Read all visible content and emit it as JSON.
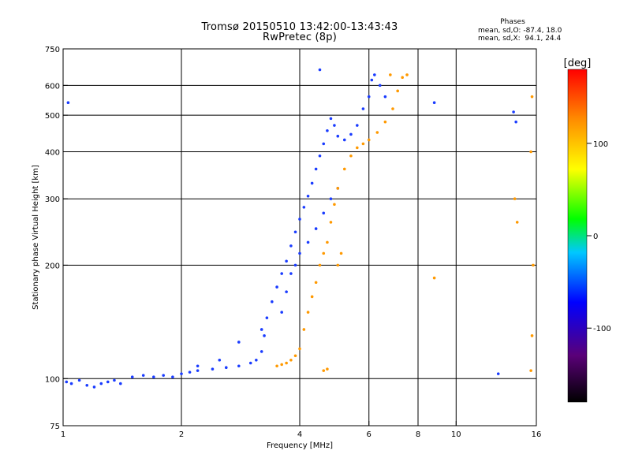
{
  "header": {
    "title_line1": "Tromsø 20150510 13:42:00-13:43:43",
    "title_line2": "RwPretec (8p)",
    "stats_heading": "Phases",
    "stats_o": "mean, sd,O: -87.4, 18.0",
    "stats_x": "mean, sd,X:  94.1, 24.4"
  },
  "colors": {
    "frame": "#000000",
    "grid": "#000000",
    "colorbar_stops": [
      "#000000",
      "#5a0078",
      "#0000ff",
      "#00c8ff",
      "#00ff00",
      "#ffff00",
      "#ff8c00",
      "#ff0000"
    ]
  },
  "chart_data": {
    "type": "scatter",
    "title": "Tromsø 20150510 13:42:00-13:43:43",
    "subtitle": "RwPretec (8p)",
    "xlabel": "Frequency [MHz]",
    "ylabel": "Stationary phase Virtual Height [km]",
    "x_scale": "log",
    "y_scale": "log",
    "xlim": [
      1,
      16
    ],
    "ylim": [
      75,
      750
    ],
    "x_ticks": [
      1,
      2,
      4,
      6,
      8,
      10,
      16
    ],
    "y_ticks": [
      75,
      100,
      200,
      300,
      400,
      500,
      600,
      750
    ],
    "x_gridlines": [
      2,
      4,
      6,
      8,
      10
    ],
    "y_gridlines": [
      100,
      200,
      300,
      400,
      500,
      600
    ],
    "grid": true,
    "colorbar": {
      "label": "[deg]",
      "range": [
        -180,
        180
      ],
      "ticks": [
        100,
        0,
        -100
      ],
      "placement": "right"
    },
    "series": [
      {
        "name": "O",
        "color": "#1a3cff",
        "points": [
          [
            1.02,
            98
          ],
          [
            1.05,
            97
          ],
          [
            1.1,
            99
          ],
          [
            1.15,
            96
          ],
          [
            1.2,
            95
          ],
          [
            1.25,
            97
          ],
          [
            1.3,
            98
          ],
          [
            1.35,
            99
          ],
          [
            1.4,
            97
          ],
          [
            1.5,
            101
          ],
          [
            1.6,
            102
          ],
          [
            1.7,
            101
          ],
          [
            1.8,
            102
          ],
          [
            1.9,
            101
          ],
          [
            2.0,
            103
          ],
          [
            2.1,
            104
          ],
          [
            2.2,
            105
          ],
          [
            2.4,
            106
          ],
          [
            2.6,
            107
          ],
          [
            2.8,
            108
          ],
          [
            3.0,
            110
          ],
          [
            3.1,
            112
          ],
          [
            3.2,
            118
          ],
          [
            3.25,
            130
          ],
          [
            3.3,
            145
          ],
          [
            3.4,
            160
          ],
          [
            3.5,
            175
          ],
          [
            3.6,
            190
          ],
          [
            3.7,
            205
          ],
          [
            3.8,
            225
          ],
          [
            3.9,
            245
          ],
          [
            4.0,
            265
          ],
          [
            4.1,
            285
          ],
          [
            4.2,
            305
          ],
          [
            4.3,
            330
          ],
          [
            4.4,
            360
          ],
          [
            4.5,
            390
          ],
          [
            4.6,
            420
          ],
          [
            4.7,
            455
          ],
          [
            4.8,
            490
          ],
          [
            4.9,
            470
          ],
          [
            5.0,
            440
          ],
          [
            5.2,
            430
          ],
          [
            5.4,
            445
          ],
          [
            5.6,
            470
          ],
          [
            5.8,
            520
          ],
          [
            6.0,
            560
          ],
          [
            6.1,
            620
          ],
          [
            6.2,
            640
          ],
          [
            6.4,
            600
          ],
          [
            6.6,
            560
          ],
          [
            3.6,
            150
          ],
          [
            3.7,
            170
          ],
          [
            3.8,
            190
          ],
          [
            3.9,
            200
          ],
          [
            4.0,
            215
          ],
          [
            4.2,
            230
          ],
          [
            4.4,
            250
          ],
          [
            4.6,
            275
          ],
          [
            4.8,
            300
          ],
          [
            5.0,
            320
          ],
          [
            2.2,
            108
          ],
          [
            2.5,
            112
          ],
          [
            2.8,
            125
          ],
          [
            3.2,
            135
          ],
          [
            4.5,
            660
          ],
          [
            1.03,
            540
          ],
          [
            14.0,
            510
          ],
          [
            14.2,
            480
          ],
          [
            8.8,
            540
          ],
          [
            12.8,
            103
          ]
        ]
      },
      {
        "name": "X",
        "color": "#ff9900",
        "points": [
          [
            3.5,
            108
          ],
          [
            3.6,
            109
          ],
          [
            3.7,
            110
          ],
          [
            3.8,
            112
          ],
          [
            3.9,
            115
          ],
          [
            4.0,
            120
          ],
          [
            4.1,
            135
          ],
          [
            4.2,
            150
          ],
          [
            4.3,
            165
          ],
          [
            4.4,
            180
          ],
          [
            4.5,
            200
          ],
          [
            4.6,
            215
          ],
          [
            4.7,
            230
          ],
          [
            4.8,
            260
          ],
          [
            4.9,
            290
          ],
          [
            5.0,
            320
          ],
          [
            5.2,
            360
          ],
          [
            5.4,
            390
          ],
          [
            5.6,
            410
          ],
          [
            5.8,
            420
          ],
          [
            6.0,
            430
          ],
          [
            6.3,
            450
          ],
          [
            6.6,
            480
          ],
          [
            6.9,
            520
          ],
          [
            7.1,
            580
          ],
          [
            7.3,
            630
          ],
          [
            4.6,
            105
          ],
          [
            4.7,
            106
          ],
          [
            5.0,
            200
          ],
          [
            5.1,
            215
          ],
          [
            6.8,
            640
          ],
          [
            7.5,
            640
          ],
          [
            15.6,
            560
          ],
          [
            15.5,
            400
          ],
          [
            15.7,
            200
          ],
          [
            15.6,
            130
          ],
          [
            15.5,
            105
          ],
          [
            14.3,
            260
          ],
          [
            14.1,
            300
          ],
          [
            8.8,
            185
          ]
        ]
      }
    ]
  }
}
